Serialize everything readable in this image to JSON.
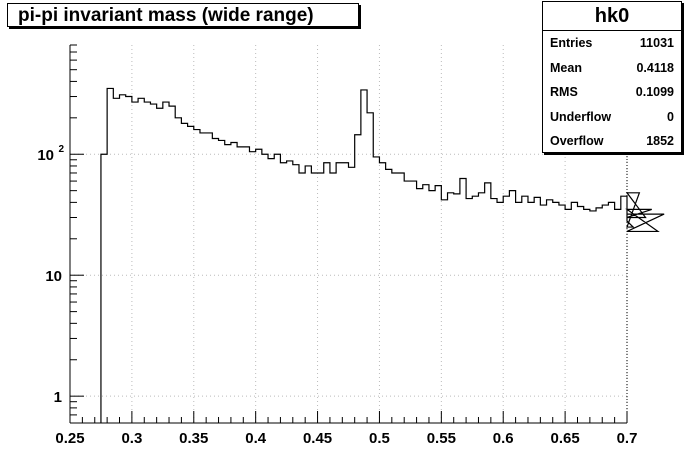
{
  "chart_data": {
    "type": "histogram",
    "title": "pi-pi invariant mass (wide range)",
    "xlim": [
      0.25,
      0.7
    ],
    "ylim": [
      0.6,
      800
    ],
    "yscale": "log",
    "grid": true,
    "x_ticks": [
      "0.25",
      "0.3",
      "0.35",
      "0.4",
      "0.45",
      "0.5",
      "0.55",
      "0.6",
      "0.65",
      "0.7"
    ],
    "y_ticks": [
      {
        "value": 1,
        "label": "1"
      },
      {
        "value": 10,
        "label": "10"
      },
      {
        "value": 100,
        "label": "10",
        "exp": "2"
      }
    ],
    "bins": {
      "start": 0.275,
      "width": 0.005,
      "values": [
        100,
        350,
        290,
        310,
        300,
        270,
        290,
        270,
        260,
        240,
        270,
        250,
        200,
        180,
        170,
        160,
        150,
        150,
        135,
        130,
        120,
        125,
        115,
        115,
        105,
        110,
        100,
        92,
        100,
        85,
        88,
        82,
        70,
        80,
        70,
        70,
        85,
        70,
        85,
        85,
        78,
        145,
        340,
        220,
        95,
        85,
        75,
        70,
        70,
        60,
        60,
        52,
        56,
        50,
        55,
        42,
        48,
        47,
        63,
        43,
        45,
        48,
        58,
        43,
        40,
        45,
        50,
        40,
        45,
        40,
        44,
        38,
        42,
        40,
        38,
        35,
        40,
        37,
        35,
        34,
        36,
        38,
        40,
        35,
        45,
        28,
        25,
        48,
        30,
        35,
        23,
        32
      ]
    },
    "stats_box": {
      "name": "hk0",
      "rows": [
        {
          "key": "Entries",
          "value": "11031"
        },
        {
          "key": "Mean",
          "value": "0.4118"
        },
        {
          "key": "RMS",
          "value": "0.1099"
        },
        {
          "key": "Underflow",
          "value": "0"
        },
        {
          "key": "Overflow",
          "value": "1852"
        }
      ]
    }
  }
}
